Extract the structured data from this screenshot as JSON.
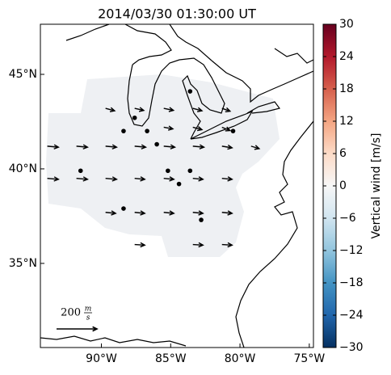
{
  "chart_data": {
    "type": "quiver-map",
    "title": "2014/03/30 01:30:00 UT",
    "xlim": [
      -94.4,
      -74.7
    ],
    "ylim": [
      30.55,
      47.65
    ],
    "xticks": [
      {
        "value": -90,
        "label": "90°W"
      },
      {
        "value": -85,
        "label": "85°W"
      },
      {
        "value": -80,
        "label": "80°W"
      },
      {
        "value": -75,
        "label": "75°W"
      }
    ],
    "yticks": [
      {
        "value": 45,
        "label": "45°N"
      },
      {
        "value": 40,
        "label": "40°N"
      },
      {
        "value": 35,
        "label": "35°N"
      }
    ],
    "stations": {
      "lon": [
        -88.4,
        -87.6,
        -86.7,
        -86.0,
        -83.6,
        -80.5,
        -91.5,
        -85.2,
        -83.6,
        -84.4,
        -88.4,
        -82.8
      ],
      "lat": [
        42.0,
        42.7,
        42.0,
        41.3,
        44.1,
        42.0,
        39.9,
        39.9,
        39.9,
        39.2,
        37.9,
        37.3
      ]
    },
    "vectors": {
      "lon": [
        -89.7,
        -87.6,
        -85.5,
        -83.4,
        -81.3,
        -85.5,
        -83.4,
        -81.3,
        -93.9,
        -91.8,
        -89.7,
        -87.6,
        -85.5,
        -83.4,
        -81.3,
        -79.2,
        -93.9,
        -91.8,
        -89.7,
        -87.6,
        -85.5,
        -83.4,
        -81.3,
        -89.7,
        -87.6,
        -85.5,
        -83.4,
        -81.3,
        -87.6,
        -83.4,
        -81.3
      ],
      "lat": [
        43.2,
        43.2,
        43.2,
        43.2,
        43.2,
        42.2,
        42.2,
        42.2,
        41.2,
        41.2,
        41.2,
        41.2,
        41.2,
        41.2,
        41.2,
        41.2,
        39.5,
        39.5,
        39.5,
        39.5,
        39.5,
        39.5,
        39.5,
        37.7,
        37.7,
        37.7,
        37.7,
        37.7,
        36.0,
        36.0,
        36.0
      ],
      "u": [
        45,
        45,
        48,
        45,
        40,
        45,
        45,
        40,
        55,
        55,
        55,
        55,
        55,
        55,
        50,
        40,
        55,
        55,
        55,
        50,
        50,
        50,
        50,
        50,
        50,
        50,
        50,
        50,
        50,
        50,
        50
      ],
      "v": [
        -12,
        -10,
        -10,
        -12,
        -14,
        -8,
        -12,
        -16,
        -5,
        -5,
        -5,
        -5,
        -5,
        -5,
        -8,
        -12,
        -5,
        -5,
        -5,
        -5,
        -5,
        -5,
        -5,
        -5,
        -5,
        -5,
        -5,
        -5,
        -3,
        -3,
        -3
      ]
    },
    "scale": {
      "value": 200,
      "unit_num": "m",
      "unit_den": "s"
    },
    "colorbar": {
      "label": "Vertical wind [m/s]",
      "lim": [
        -30,
        30
      ],
      "ticks": [
        30,
        24,
        18,
        12,
        6,
        0,
        {
          "value": -6,
          "label": "−6"
        },
        {
          "value": -12,
          "label": "−12"
        },
        {
          "value": -18,
          "label": "−18"
        },
        {
          "value": -24,
          "label": "−24"
        },
        {
          "value": -30,
          "label": "−30"
        }
      ],
      "colors": [
        "#053061",
        "#2166ac",
        "#4393c3",
        "#92c5de",
        "#d1e5f0",
        "#f7f7f7",
        "#fddbc7",
        "#f4a582",
        "#d6604d",
        "#b2182b",
        "#67001f"
      ]
    },
    "arrow_color": "#000000"
  }
}
